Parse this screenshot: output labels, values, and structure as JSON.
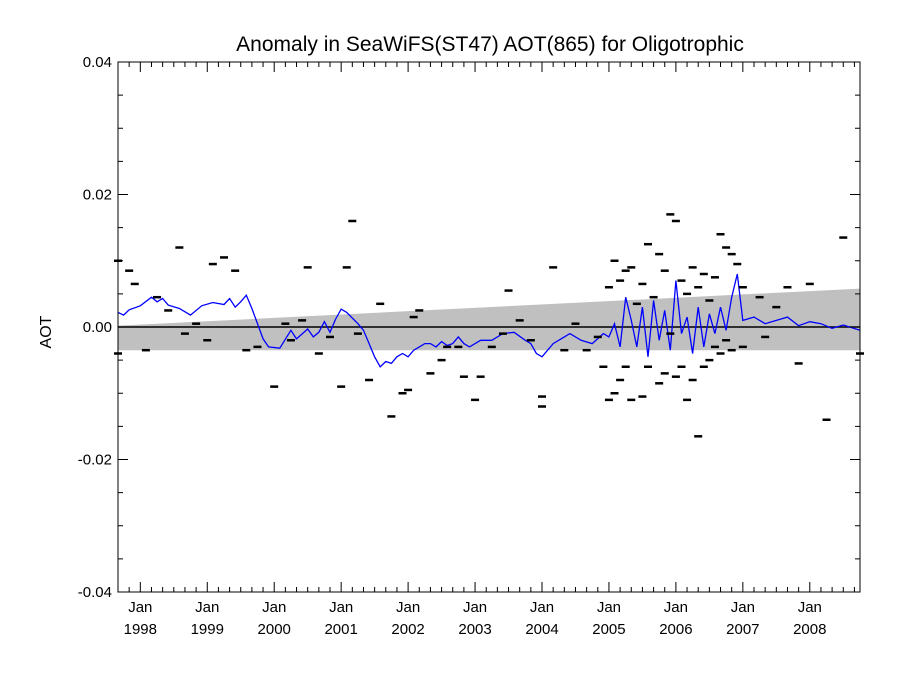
{
  "chart_data": {
    "type": "line",
    "title": "Anomaly in SeaWiFS(ST47) AOT(865) for Oligotrophic",
    "xlabel": "",
    "ylabel": "AOT",
    "xlim": [
      "1997-09",
      "2008-10"
    ],
    "ylim": [
      -0.04,
      0.04
    ],
    "yticks": [
      "0.04",
      "0.02",
      "0.00",
      "-0.02",
      "-0.04"
    ],
    "xticks": [
      {
        "month": "Jan",
        "year": "1998",
        "date": "1998-01"
      },
      {
        "month": "Jan",
        "year": "1999",
        "date": "1999-01"
      },
      {
        "month": "Jan",
        "year": "2000",
        "date": "2000-01"
      },
      {
        "month": "Jan",
        "year": "2001",
        "date": "2001-01"
      },
      {
        "month": "Jan",
        "year": "2002",
        "date": "2002-01"
      },
      {
        "month": "Jan",
        "year": "2003",
        "date": "2003-01"
      },
      {
        "month": "Jan",
        "year": "2004",
        "date": "2004-01"
      },
      {
        "month": "Jan",
        "year": "2005",
        "date": "2005-01"
      },
      {
        "month": "Jan",
        "year": "2006",
        "date": "2006-01"
      },
      {
        "month": "Jan",
        "year": "2007",
        "date": "2007-01"
      },
      {
        "month": "Jan",
        "year": "2008",
        "date": "2008-01"
      }
    ],
    "grid": false,
    "zero_line": 0.0,
    "band": {
      "color": "#c0c0c0",
      "x": [
        "1997-09",
        "2008-10"
      ],
      "lower": [
        -0.0035,
        -0.0035
      ],
      "upper": [
        0.0002,
        0.0058
      ]
    },
    "line_series": {
      "color": "#0000ff",
      "points": [
        [
          "1997-09",
          0.0022
        ],
        [
          "1997-10",
          0.0018
        ],
        [
          "1997-11",
          0.0026
        ],
        [
          "1998-01",
          0.0032
        ],
        [
          "1998-03",
          0.0045
        ],
        [
          "1998-04",
          0.0038
        ],
        [
          "1998-05",
          0.0043
        ],
        [
          "1998-06",
          0.0033
        ],
        [
          "1998-08",
          0.0028
        ],
        [
          "1998-10",
          0.0018
        ],
        [
          "1998-12",
          0.0032
        ],
        [
          "1999-02",
          0.0037
        ],
        [
          "1999-04",
          0.0034
        ],
        [
          "1999-05",
          0.0043
        ],
        [
          "1999-06",
          0.003
        ],
        [
          "1999-07",
          0.0038
        ],
        [
          "1999-08",
          0.0048
        ],
        [
          "1999-09",
          0.0028
        ],
        [
          "1999-10",
          0.0005
        ],
        [
          "1999-11",
          -0.0018
        ],
        [
          "1999-12",
          -0.003
        ],
        [
          "2000-02",
          -0.0032
        ],
        [
          "2000-04",
          -0.0005
        ],
        [
          "2000-05",
          -0.0018
        ],
        [
          "2000-07",
          -0.0003
        ],
        [
          "2000-08",
          -0.0015
        ],
        [
          "2000-09",
          -0.0008
        ],
        [
          "2000-10",
          0.0008
        ],
        [
          "2000-11",
          -0.0008
        ],
        [
          "2000-12",
          0.0012
        ],
        [
          "2001-01",
          0.0027
        ],
        [
          "2001-02",
          0.0022
        ],
        [
          "2001-04",
          0.0005
        ],
        [
          "2001-05",
          -0.0005
        ],
        [
          "2001-06",
          -0.0025
        ],
        [
          "2001-07",
          -0.0045
        ],
        [
          "2001-08",
          -0.006
        ],
        [
          "2001-09",
          -0.0052
        ],
        [
          "2001-10",
          -0.0055
        ],
        [
          "2001-11",
          -0.0045
        ],
        [
          "2001-12",
          -0.004
        ],
        [
          "2002-01",
          -0.0045
        ],
        [
          "2002-02",
          -0.0035
        ],
        [
          "2002-03",
          -0.003
        ],
        [
          "2002-04",
          -0.0025
        ],
        [
          "2002-05",
          -0.0025
        ],
        [
          "2002-06",
          -0.003
        ],
        [
          "2002-07",
          -0.0022
        ],
        [
          "2002-08",
          -0.0028
        ],
        [
          "2002-09",
          -0.0025
        ],
        [
          "2002-10",
          -0.0015
        ],
        [
          "2002-11",
          -0.0025
        ],
        [
          "2002-12",
          -0.003
        ],
        [
          "2003-02",
          -0.002
        ],
        [
          "2003-04",
          -0.002
        ],
        [
          "2003-06",
          -0.001
        ],
        [
          "2003-08",
          -0.0008
        ],
        [
          "2003-10",
          -0.002
        ],
        [
          "2003-11",
          -0.0025
        ],
        [
          "2003-12",
          -0.004
        ],
        [
          "2004-01",
          -0.0045
        ],
        [
          "2004-03",
          -0.0025
        ],
        [
          "2004-05",
          -0.0015
        ],
        [
          "2004-06",
          -0.001
        ],
        [
          "2004-08",
          -0.002
        ],
        [
          "2004-10",
          -0.0025
        ],
        [
          "2004-12",
          -0.001
        ],
        [
          "2005-01",
          -0.0015
        ],
        [
          "2005-02",
          0.0005
        ],
        [
          "2005-03",
          -0.003
        ],
        [
          "2005-04",
          0.0045
        ],
        [
          "2005-05",
          0.001
        ],
        [
          "2005-06",
          -0.003
        ],
        [
          "2005-07",
          0.003
        ],
        [
          "2005-08",
          -0.0045
        ],
        [
          "2005-09",
          0.004
        ],
        [
          "2005-10",
          -0.002
        ],
        [
          "2005-11",
          0.0025
        ],
        [
          "2005-12",
          -0.0035
        ],
        [
          "2006-01",
          0.007
        ],
        [
          "2006-02",
          -0.001
        ],
        [
          "2006-03",
          0.0015
        ],
        [
          "2006-04",
          -0.004
        ],
        [
          "2006-05",
          0.003
        ],
        [
          "2006-06",
          -0.003
        ],
        [
          "2006-07",
          0.002
        ],
        [
          "2006-08",
          -0.001
        ],
        [
          "2006-09",
          0.003
        ],
        [
          "2006-10",
          -0.0005
        ],
        [
          "2006-11",
          0.0045
        ],
        [
          "2006-12",
          0.008
        ],
        [
          "2007-01",
          0.001
        ],
        [
          "2007-03",
          0.0015
        ],
        [
          "2007-05",
          0.0005
        ],
        [
          "2007-07",
          0.001
        ],
        [
          "2007-09",
          0.0015
        ],
        [
          "2007-11",
          0.0002
        ],
        [
          "2008-01",
          0.0008
        ],
        [
          "2008-03",
          0.0005
        ],
        [
          "2008-05",
          -0.0002
        ],
        [
          "2008-07",
          0.0003
        ],
        [
          "2008-10",
          -0.0005
        ]
      ]
    },
    "scatter_series": {
      "color": "#000000",
      "marker": "dash",
      "points": [
        [
          "1997-09",
          0.01
        ],
        [
          "1997-09",
          -0.004
        ],
        [
          "1997-11",
          0.0085
        ],
        [
          "1997-12",
          0.0065
        ],
        [
          "1998-02",
          -0.0035
        ],
        [
          "1998-04",
          0.0045
        ],
        [
          "1998-06",
          0.0025
        ],
        [
          "1998-08",
          0.012
        ],
        [
          "1998-09",
          -0.001
        ],
        [
          "1998-11",
          0.0005
        ],
        [
          "1999-01",
          -0.002
        ],
        [
          "1999-02",
          0.0095
        ],
        [
          "1999-04",
          0.0105
        ],
        [
          "1999-06",
          0.0085
        ],
        [
          "1999-08",
          -0.0035
        ],
        [
          "1999-10",
          -0.003
        ],
        [
          "2000-01",
          -0.009
        ],
        [
          "2000-03",
          0.0005
        ],
        [
          "2000-04",
          -0.002
        ],
        [
          "2000-06",
          0.001
        ],
        [
          "2000-07",
          0.009
        ],
        [
          "2000-09",
          -0.004
        ],
        [
          "2000-11",
          -0.0015
        ],
        [
          "2001-01",
          -0.009
        ],
        [
          "2001-02",
          0.009
        ],
        [
          "2001-03",
          0.016
        ],
        [
          "2001-04",
          -0.001
        ],
        [
          "2001-06",
          -0.008
        ],
        [
          "2001-08",
          0.0035
        ],
        [
          "2001-10",
          -0.0135
        ],
        [
          "2001-12",
          -0.01
        ],
        [
          "2002-01",
          -0.0095
        ],
        [
          "2002-02",
          0.0015
        ],
        [
          "2002-03",
          0.0025
        ],
        [
          "2002-05",
          -0.007
        ],
        [
          "2002-07",
          -0.005
        ],
        [
          "2002-08",
          -0.003
        ],
        [
          "2002-10",
          -0.003
        ],
        [
          "2002-11",
          -0.0075
        ],
        [
          "2003-01",
          -0.011
        ],
        [
          "2003-02",
          -0.0075
        ],
        [
          "2003-04",
          -0.003
        ],
        [
          "2003-06",
          -0.001
        ],
        [
          "2003-07",
          0.0055
        ],
        [
          "2003-09",
          0.001
        ],
        [
          "2003-11",
          -0.002
        ],
        [
          "2004-01",
          -0.012
        ],
        [
          "2004-01",
          -0.0105
        ],
        [
          "2004-03",
          0.009
        ],
        [
          "2004-05",
          -0.0035
        ],
        [
          "2004-07",
          0.0005
        ],
        [
          "2004-09",
          -0.0035
        ],
        [
          "2004-11",
          -0.0015
        ],
        [
          "2004-12",
          -0.006
        ],
        [
          "2005-01",
          -0.011
        ],
        [
          "2005-01",
          0.006
        ],
        [
          "2005-02",
          -0.01
        ],
        [
          "2005-02",
          0.01
        ],
        [
          "2005-03",
          -0.008
        ],
        [
          "2005-03",
          0.007
        ],
        [
          "2005-04",
          -0.006
        ],
        [
          "2005-04",
          0.0085
        ],
        [
          "2005-05",
          -0.011
        ],
        [
          "2005-05",
          0.009
        ],
        [
          "2005-06",
          0.0035
        ],
        [
          "2005-07",
          -0.0105
        ],
        [
          "2005-07",
          0.0065
        ],
        [
          "2005-08",
          0.0125
        ],
        [
          "2005-08",
          -0.006
        ],
        [
          "2005-09",
          0.0045
        ],
        [
          "2005-10",
          -0.0085
        ],
        [
          "2005-10",
          0.011
        ],
        [
          "2005-11",
          0.0085
        ],
        [
          "2005-11",
          -0.007
        ],
        [
          "2005-12",
          0.017
        ],
        [
          "2005-12",
          -0.001
        ],
        [
          "2006-01",
          0.016
        ],
        [
          "2006-01",
          -0.0075
        ],
        [
          "2006-02",
          0.007
        ],
        [
          "2006-02",
          -0.006
        ],
        [
          "2006-03",
          0.005
        ],
        [
          "2006-03",
          -0.011
        ],
        [
          "2006-04",
          0.009
        ],
        [
          "2006-04",
          -0.008
        ],
        [
          "2006-05",
          0.006
        ],
        [
          "2006-05",
          -0.0165
        ],
        [
          "2006-06",
          0.008
        ],
        [
          "2006-06",
          -0.006
        ],
        [
          "2006-07",
          0.004
        ],
        [
          "2006-07",
          -0.005
        ],
        [
          "2006-08",
          0.0075
        ],
        [
          "2006-08",
          -0.003
        ],
        [
          "2006-09",
          0.014
        ],
        [
          "2006-09",
          -0.004
        ],
        [
          "2006-10",
          0.012
        ],
        [
          "2006-10",
          -0.002
        ],
        [
          "2006-11",
          0.011
        ],
        [
          "2006-11",
          -0.0035
        ],
        [
          "2006-12",
          0.0095
        ],
        [
          "2007-01",
          0.006
        ],
        [
          "2007-01",
          -0.003
        ],
        [
          "2007-04",
          0.0045
        ],
        [
          "2007-05",
          -0.0015
        ],
        [
          "2007-07",
          0.003
        ],
        [
          "2007-09",
          0.006
        ],
        [
          "2007-11",
          -0.0055
        ],
        [
          "2008-01",
          0.0065
        ],
        [
          "2008-04",
          -0.014
        ],
        [
          "2008-07",
          0.0135
        ],
        [
          "2008-10",
          -0.004
        ]
      ]
    }
  }
}
